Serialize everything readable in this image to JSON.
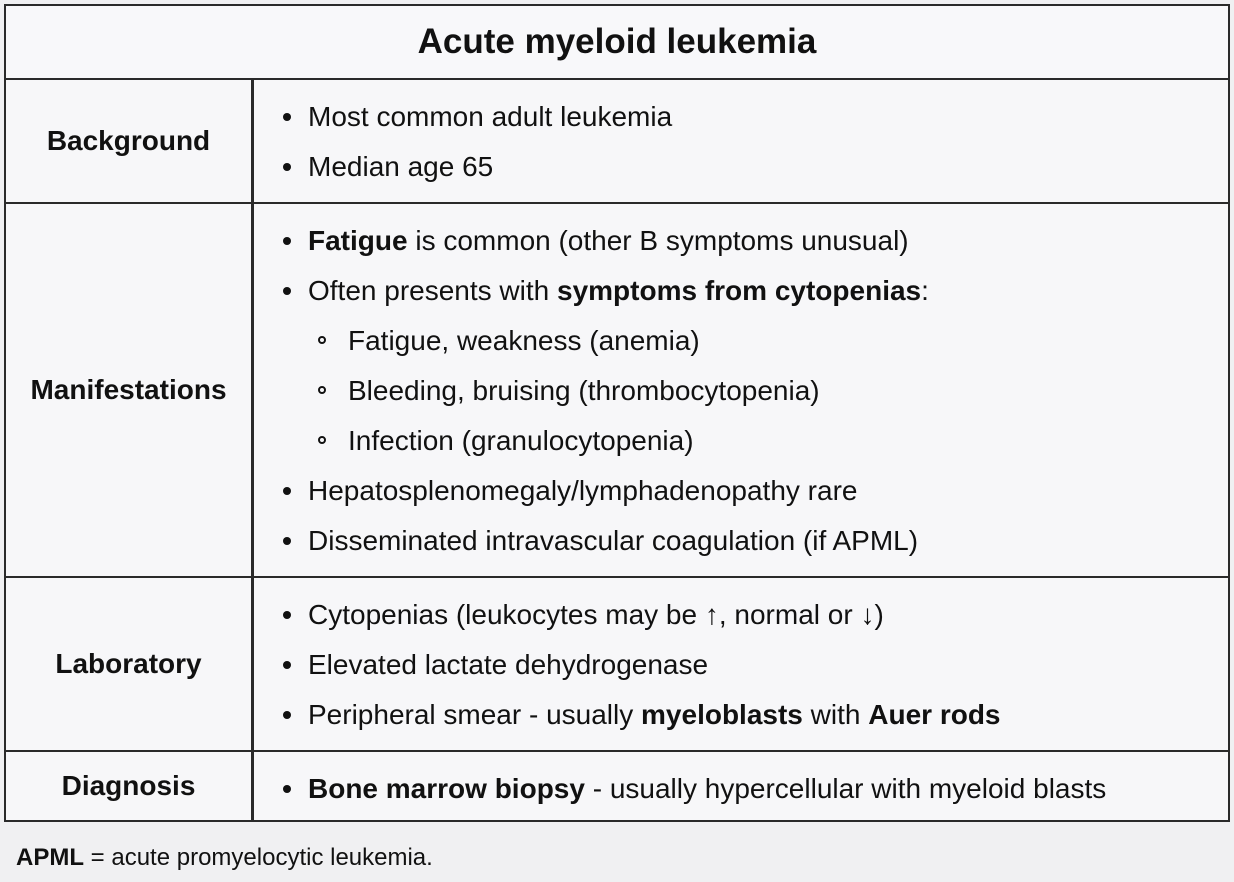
{
  "title": "Acute myeloid leukemia",
  "rows": {
    "background": {
      "label": "Background",
      "b1": "Most common adult leukemia",
      "b2": "Median age 65"
    },
    "manifestations": {
      "label": "Manifestations",
      "b1_bold": "Fatigue",
      "b1_rest": " is common (other B symptoms unusual)",
      "b2_pre": "Often presents with ",
      "b2_bold": "symptoms from cytopenias",
      "b2_post": ":",
      "s1": "Fatigue, weakness (anemia)",
      "s2": "Bleeding, bruising (thrombocytopenia)",
      "s3": "Infection (granulocytopenia)",
      "b3": "Hepatosplenomegaly/lymphadenopathy rare",
      "b4": "Disseminated intravascular coagulation (if APML)"
    },
    "laboratory": {
      "label": "Laboratory",
      "b1": "Cytopenias (leukocytes may be ↑, normal or ↓)",
      "b2": "Elevated lactate dehydrogenase",
      "b3_pre": "Peripheral smear - usually ",
      "b3_bold1": "myeloblasts",
      "b3_mid": " with ",
      "b3_bold2": "Auer rods"
    },
    "diagnosis": {
      "label": "Diagnosis",
      "b1_bold": "Bone marrow biopsy",
      "b1_rest": " - usually hypercellular with myeloid blasts"
    }
  },
  "footnote": {
    "bold": "APML",
    "rest": " = acute promyelocytic leukemia."
  }
}
